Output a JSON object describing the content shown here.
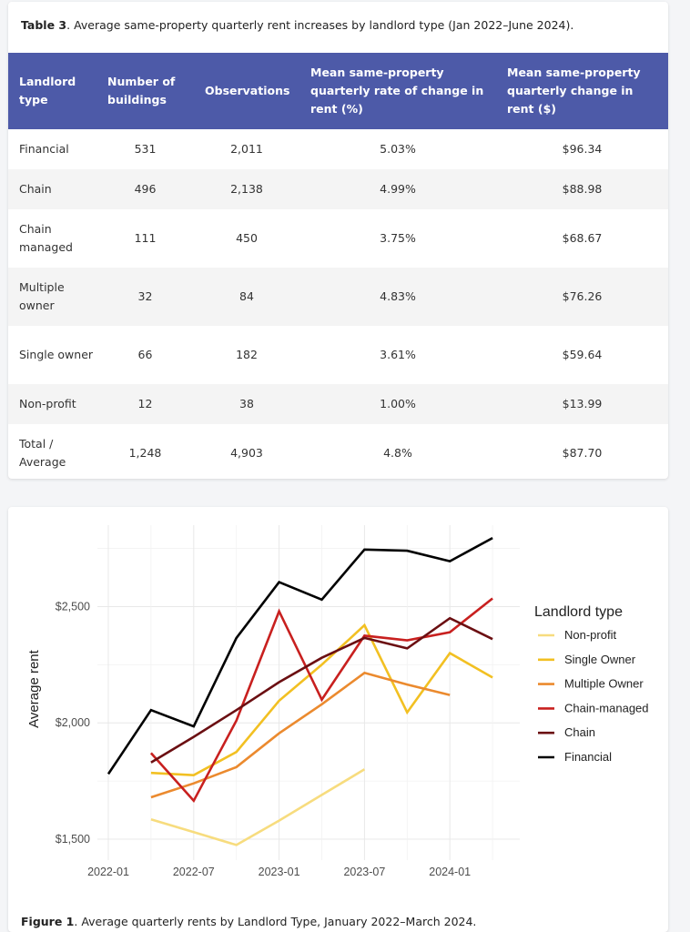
{
  "table": {
    "caption_label": "Table 3",
    "caption_text": ". Average same-property quarterly rent increases by landlord type (Jan 2022–June 2024).",
    "headers": [
      "Landlord type",
      "Number of buildings",
      "Observations",
      "Mean same-property quarterly rate of change in rent (%)",
      "Mean same-property quarterly change in rent ($)"
    ],
    "rows": [
      [
        "Financial",
        "531",
        "2,011",
        "5.03%",
        "$96.34"
      ],
      [
        "Chain",
        "496",
        "2,138",
        "4.99%",
        "$88.98"
      ],
      [
        "Chain managed",
        "111",
        "450",
        "3.75%",
        "$68.67"
      ],
      [
        "Multiple owner",
        "32",
        "84",
        "4.83%",
        "$76.26"
      ],
      [
        "Single owner",
        "66",
        "182",
        "3.61%",
        "$59.64"
      ],
      [
        "Non-profit",
        "12",
        "38",
        "1.00%",
        "$13.99"
      ],
      [
        "Total / Average",
        "1,248",
        "4,903",
        "4.8%",
        "$87.70"
      ]
    ]
  },
  "figure": {
    "caption_label": "Figure 1",
    "caption_text": ". Average quarterly rents by Landlord Type, January 2022–March 2024."
  },
  "chart_data": {
    "type": "line",
    "title": "",
    "xlabel": "",
    "ylabel": "Average rent",
    "x": [
      "2022-01",
      "2022-04",
      "2022-07",
      "2022-10",
      "2023-01",
      "2023-04",
      "2023-07",
      "2023-10",
      "2024-01",
      "2024-04"
    ],
    "x_ticks": [
      "2022-01",
      "2022-07",
      "2023-01",
      "2023-07",
      "2024-01"
    ],
    "y_ticks": [
      1500,
      2000,
      2500
    ],
    "y_tick_labels": [
      "$1,500",
      "$2,000",
      "$2,500"
    ],
    "ylim": [
      1410,
      2850
    ],
    "legend_title": "Landlord type",
    "legend_position": "right",
    "grid": true,
    "series": [
      {
        "name": "Non-profit",
        "color": "#f7dc7e",
        "values": [
          null,
          1585,
          1530,
          1475,
          1580,
          1690,
          1800,
          null,
          null,
          null
        ]
      },
      {
        "name": "Single Owner",
        "color": "#f2c022",
        "values": [
          null,
          1785,
          1775,
          1875,
          2095,
          2250,
          2420,
          2045,
          2300,
          2195
        ]
      },
      {
        "name": "Multiple Owner",
        "color": "#eb8a2e",
        "values": [
          null,
          1680,
          1740,
          1810,
          1955,
          2080,
          2215,
          2165,
          2120,
          null
        ]
      },
      {
        "name": "Chain-managed",
        "color": "#c8201f",
        "values": [
          null,
          1870,
          1665,
          2010,
          2480,
          2100,
          2375,
          2355,
          2390,
          2535
        ]
      },
      {
        "name": "Chain",
        "color": "#6b0f12",
        "values": [
          null,
          1830,
          1940,
          2055,
          2175,
          2280,
          2365,
          2320,
          2450,
          2360
        ]
      },
      {
        "name": "Financial",
        "color": "#000000",
        "values": [
          1780,
          2055,
          1985,
          2365,
          2605,
          2530,
          2745,
          2740,
          2695,
          2795
        ]
      }
    ]
  }
}
